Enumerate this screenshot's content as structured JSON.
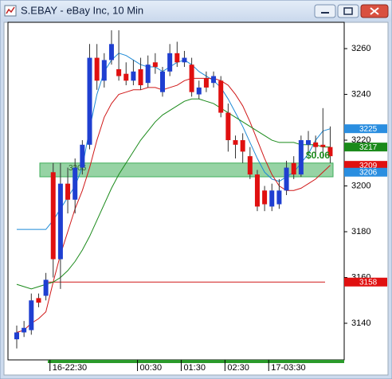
{
  "chart_data": {
    "type": "candlestick",
    "title": "S.EBAY - eBay Inc, 10 Min",
    "categories": [
      null,
      null,
      null,
      null,
      null,
      "16-22:30",
      null,
      null,
      null,
      null,
      null,
      null,
      null,
      null,
      null,
      null,
      null,
      "00:30",
      null,
      null,
      null,
      null,
      null,
      "01:30",
      null,
      null,
      null,
      null,
      null,
      "02:30",
      null,
      null,
      null,
      null,
      null,
      "17-03:30",
      null,
      null,
      null,
      null,
      null,
      null,
      null,
      null
    ],
    "open": [
      3133,
      3136,
      3137,
      3151,
      3152,
      3206,
      3168,
      3201,
      3194,
      3208,
      3218,
      3256,
      3246,
      3255,
      3251,
      3249,
      3246,
      3251,
      3245,
      3254,
      3241,
      3250,
      3258,
      3254,
      3253,
      3240,
      3247,
      3245,
      3246,
      3232,
      3220,
      3220,
      3213,
      3205,
      3198,
      3191,
      3192,
      3198,
      3210,
      3205,
      3218,
      3219,
      3218,
      3217
    ],
    "high": [
      3139,
      3141,
      3153,
      3153,
      3162,
      3210,
      3210,
      3208,
      3212,
      3220,
      3262,
      3262,
      3258,
      3268,
      3268,
      3254,
      3255,
      3256,
      3257,
      3258,
      3252,
      3262,
      3263,
      3259,
      3256,
      3246,
      3250,
      3250,
      3248,
      3236,
      3222,
      3223,
      3217,
      3207,
      3200,
      3201,
      3203,
      3211,
      3213,
      3222,
      3224,
      3222,
      3234,
      3226
    ],
    "low": [
      3129,
      3134,
      3135,
      3147,
      3150,
      3160,
      3155,
      3188,
      3188,
      3205,
      3216,
      3242,
      3243,
      3253,
      3246,
      3244,
      3244,
      3242,
      3243,
      3249,
      3239,
      3248,
      3252,
      3252,
      3239,
      3238,
      3241,
      3243,
      3230,
      3215,
      3212,
      3210,
      3203,
      3189,
      3189,
      3189,
      3190,
      3196,
      3203,
      3204,
      3214,
      3213,
      3212,
      3210
    ],
    "close": [
      3136,
      3138,
      3150,
      3149,
      3159,
      3168,
      3201,
      3194,
      3208,
      3218,
      3256,
      3246,
      3255,
      3262,
      3248,
      3246,
      3250,
      3244,
      3253,
      3252,
      3250,
      3258,
      3254,
      3256,
      3241,
      3243,
      3243,
      3248,
      3232,
      3220,
      3218,
      3215,
      3205,
      3191,
      3192,
      3198,
      3198,
      3208,
      3205,
      3220,
      3220,
      3217,
      3217,
      3213
    ],
    "up_color": "#1f3fd1",
    "down_color": "#e01010",
    "lines": [
      {
        "color": "#1e8ad6",
        "values": [
          3181,
          3181,
          3181,
          3181,
          3181,
          3185,
          3190,
          3195,
          3200,
          3208,
          3225,
          3240,
          3250,
          3255,
          3258,
          3257,
          3255,
          3253,
          3252,
          3252,
          3250,
          3252,
          3254,
          3255,
          3253,
          3250,
          3248,
          3246,
          3243,
          3238,
          3232,
          3226,
          3219,
          3212,
          3206,
          3203,
          3202,
          3204,
          3206,
          3210,
          3214,
          3220,
          3224,
          3225
        ]
      },
      {
        "color": "#d01818",
        "values": [
          3136,
          3137,
          3140,
          3142,
          3145,
          3158,
          3170,
          3180,
          3190,
          3198,
          3208,
          3220,
          3230,
          3236,
          3240,
          3241,
          3242,
          3242,
          3243,
          3243,
          3242,
          3243,
          3244,
          3246,
          3247,
          3247,
          3247,
          3247,
          3246,
          3244,
          3240,
          3235,
          3228,
          3220,
          3212,
          3205,
          3200,
          3198,
          3198,
          3199,
          3201,
          3203,
          3206,
          3209
        ]
      },
      {
        "color": "#1a8a1a",
        "values": [
          3157,
          3156,
          3155,
          3156,
          3157,
          3158,
          3160,
          3163,
          3167,
          3172,
          3178,
          3185,
          3192,
          3199,
          3205,
          3210,
          3215,
          3220,
          3224,
          3228,
          3231,
          3233,
          3235,
          3237,
          3238,
          3238,
          3237,
          3236,
          3234,
          3232,
          3230,
          3228,
          3226,
          3224,
          3222,
          3220,
          3219,
          3219,
          3219,
          3218,
          3218,
          3218,
          3217,
          3217
        ]
      }
    ],
    "level": {
      "value": 3158,
      "color": "#d01818"
    },
    "zone": {
      "low": 3204,
      "high": 3210,
      "color": "#3fae5a",
      "label": 3206
    },
    "annotation": {
      "text": "$0.06",
      "color": "#1a8a1a"
    },
    "price_tags": [
      {
        "value": 3225,
        "color": "#2a8ee0"
      },
      {
        "value": 3217,
        "color": "#1a8a1a"
      },
      {
        "value": 3209,
        "color": "#e01010"
      },
      {
        "value": 3206,
        "color": "#2a8ee0"
      },
      {
        "value": 3158,
        "color": "#e01010"
      }
    ],
    "ylim": [
      3124,
      3271.5
    ],
    "yticks": [
      3140,
      3160,
      3180,
      3200,
      3220,
      3240,
      3260
    ]
  }
}
